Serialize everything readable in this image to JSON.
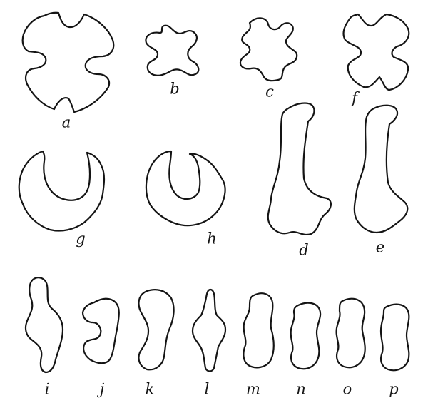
{
  "figures": [
    {
      "id": "a",
      "label": "a"
    },
    {
      "id": "b",
      "label": "b"
    },
    {
      "id": "c",
      "label": "c"
    },
    {
      "id": "f",
      "label": "f"
    },
    {
      "id": "g",
      "label": "g"
    },
    {
      "id": "h",
      "label": "h"
    },
    {
      "id": "d",
      "label": "d"
    },
    {
      "id": "e",
      "label": "e"
    },
    {
      "id": "i",
      "label": "i"
    },
    {
      "id": "j",
      "label": "j"
    },
    {
      "id": "k",
      "label": "k"
    },
    {
      "id": "l",
      "label": "l"
    },
    {
      "id": "m",
      "label": "m"
    },
    {
      "id": "n",
      "label": "n"
    },
    {
      "id": "o",
      "label": "o"
    },
    {
      "id": "p",
      "label": "p"
    }
  ]
}
